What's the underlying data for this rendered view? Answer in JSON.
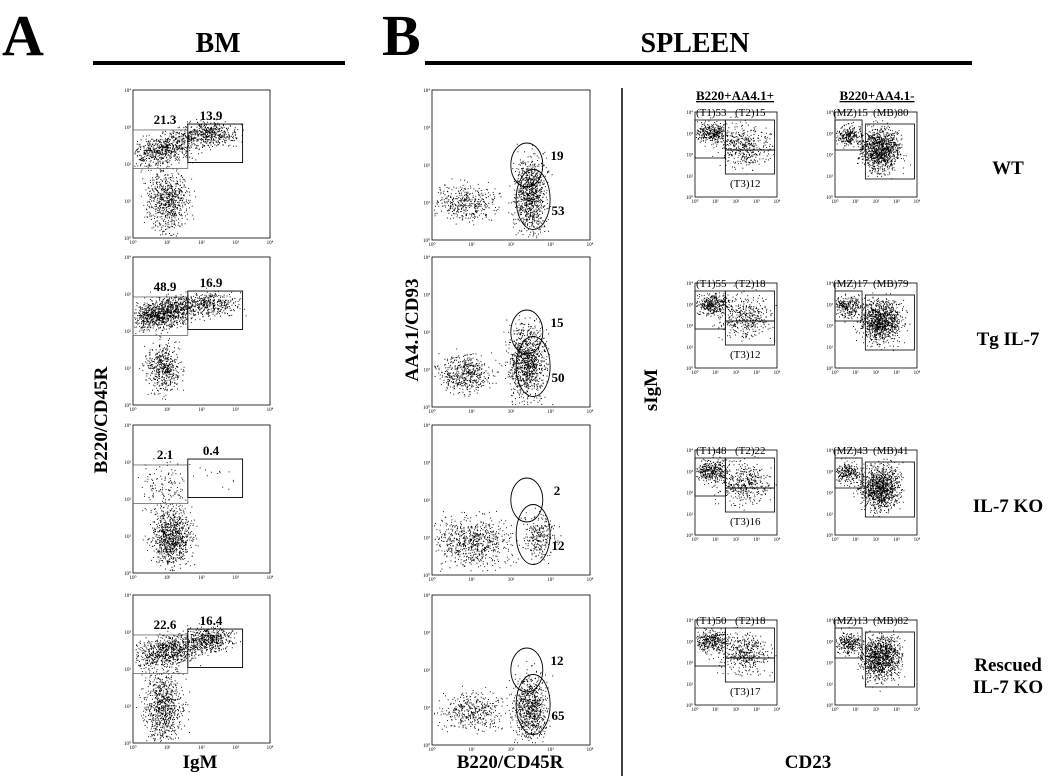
{
  "panel_a": {
    "letter": "A",
    "title": "BM",
    "x_label": "IgM",
    "y_label": "B220/CD45R",
    "plots": [
      {
        "gates": [
          "21.3",
          "13.9"
        ]
      },
      {
        "gates": [
          "48.9",
          "16.9"
        ]
      },
      {
        "gates": [
          "2.1",
          "0.4"
        ]
      },
      {
        "gates": [
          "22.6",
          "16.4"
        ]
      }
    ]
  },
  "panel_b": {
    "letter": "B",
    "title": "SPLEEN",
    "left": {
      "x_label": "B220/CD45R",
      "y_label": "AA4.1/CD93",
      "plots": [
        {
          "gates": [
            "19",
            "53"
          ]
        },
        {
          "gates": [
            "15",
            "50"
          ]
        },
        {
          "gates": [
            "2",
            "12"
          ]
        },
        {
          "gates": [
            "12",
            "65"
          ]
        }
      ]
    },
    "right": {
      "headers": [
        "B220+AA4.1+",
        "B220+AA4.1-"
      ],
      "x_label": "CD23",
      "y_label": "sIgM",
      "rows": [
        {
          "label": [
            "WT"
          ],
          "left": [
            "(T1)53",
            "(T2)15",
            "(T3)12"
          ],
          "right": [
            "(MZ)15",
            "(MB)80"
          ]
        },
        {
          "label": [
            "Tg IL-7"
          ],
          "left": [
            "(T1)55",
            "(T2)18",
            "(T3)12"
          ],
          "right": [
            "(MZ)17",
            "(MB)79"
          ]
        },
        {
          "label": [
            "IL-7 KO"
          ],
          "left": [
            "(T1)48",
            "(T2)22",
            "(T3)16"
          ],
          "right": [
            "(MZ)43",
            "(MB)41"
          ]
        },
        {
          "label": [
            "Rescued",
            "IL-7 KO"
          ],
          "left": [
            "(T1)50",
            "(T2)18",
            "(T3)17"
          ],
          "right": [
            "(MZ)13",
            "(MB)82"
          ]
        }
      ]
    }
  },
  "tick_labels": [
    "10⁰",
    "10¹",
    "10²",
    "10³",
    "10⁴"
  ]
}
